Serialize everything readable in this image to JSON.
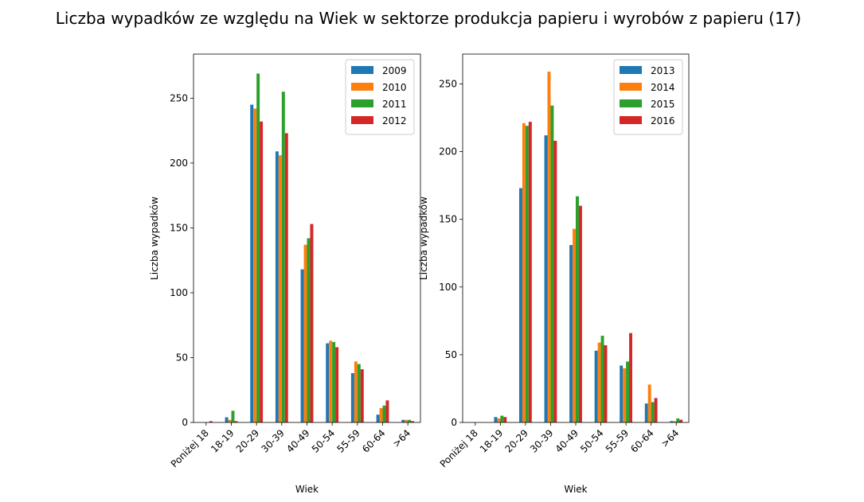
{
  "figure": {
    "title": "Liczba wypadków ze względu na Wiek w sektorze produkcja papieru i wyrobów z papieru  (17)"
  },
  "colors": {
    "blue": "#1f77b4",
    "orange": "#ff7f0e",
    "green": "#2ca02c",
    "red": "#d62728"
  },
  "chart_data": [
    {
      "type": "bar",
      "title": "",
      "xlabel": "Wiek",
      "ylabel": "Liczba wypadków",
      "categories": [
        "Poniżej 18",
        "18-19",
        "20-29",
        "30-39",
        "40-49",
        "50-54",
        "55-59",
        "60-64",
        ">64"
      ],
      "ylim": [
        0,
        284
      ],
      "yticks": [
        0,
        50,
        100,
        150,
        200,
        250
      ],
      "legend": "top-right",
      "series": [
        {
          "name": "2009",
          "color": "#1f77b4",
          "values": [
            0,
            4,
            245,
            209,
            118,
            61,
            38,
            6,
            2
          ]
        },
        {
          "name": "2010",
          "color": "#ff7f0e",
          "values": [
            0,
            2,
            242,
            206,
            137,
            63,
            47,
            11,
            2
          ]
        },
        {
          "name": "2011",
          "color": "#2ca02c",
          "values": [
            0,
            9,
            269,
            255,
            142,
            62,
            45,
            13,
            2
          ]
        },
        {
          "name": "2012",
          "color": "#d62728",
          "values": [
            1,
            1,
            232,
            223,
            153,
            58,
            41,
            17,
            1
          ]
        }
      ]
    },
    {
      "type": "bar",
      "title": "",
      "xlabel": "Wiek",
      "ylabel": "Liczba wypadków",
      "categories": [
        "Poniżej 18",
        "18-19",
        "20-29",
        "30-39",
        "40-49",
        "50-54",
        "55-59",
        "60-64",
        ">64"
      ],
      "ylim": [
        0,
        272
      ],
      "yticks": [
        0,
        50,
        100,
        150,
        200,
        250
      ],
      "legend": "top-right",
      "series": [
        {
          "name": "2013",
          "color": "#1f77b4",
          "values": [
            0,
            4,
            173,
            212,
            131,
            53,
            42,
            14,
            1
          ]
        },
        {
          "name": "2014",
          "color": "#ff7f0e",
          "values": [
            0,
            3,
            221,
            259,
            143,
            59,
            40,
            28,
            1
          ]
        },
        {
          "name": "2015",
          "color": "#2ca02c",
          "values": [
            0,
            5,
            219,
            234,
            167,
            64,
            45,
            15,
            3
          ]
        },
        {
          "name": "2016",
          "color": "#d62728",
          "values": [
            0,
            4,
            222,
            208,
            160,
            57,
            66,
            18,
            2
          ]
        }
      ]
    }
  ]
}
